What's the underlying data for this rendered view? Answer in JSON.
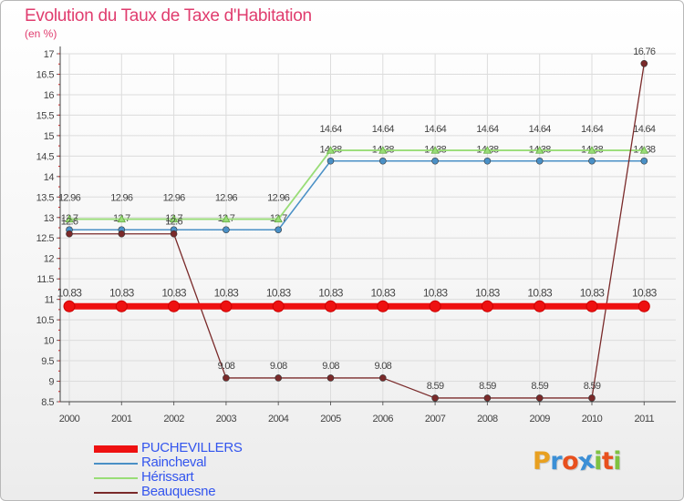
{
  "title": "Evolution du Taux de Taxe d'Habitation",
  "unit": "(en %)",
  "brand": {
    "letters": [
      "P",
      "r",
      "o",
      "x",
      "i",
      "t",
      "i"
    ],
    "colors": [
      "#e8a020",
      "#3b8fd6",
      "#e8501e",
      "#3b8fd6",
      "#7fc241",
      "#e8501e",
      "#7fc241"
    ]
  },
  "chart_data": {
    "type": "line",
    "categories": [
      "2000",
      "2001",
      "2002",
      "2003",
      "2004",
      "2005",
      "2006",
      "2007",
      "2008",
      "2009",
      "2010",
      "2011"
    ],
    "ylim": [
      8.5,
      17
    ],
    "yticks": [
      "8.5",
      "9",
      "9.5",
      "10",
      "10.5",
      "11",
      "11.5",
      "12",
      "12.5",
      "13",
      "13.5",
      "14",
      "14.5",
      "15",
      "15.5",
      "16",
      "16.5",
      "17"
    ],
    "grid": true,
    "legend_position": "bottom-left",
    "series": [
      {
        "name": "PUCHEVILLERS",
        "color": "#ee1111",
        "values": [
          10.83,
          10.83,
          10.83,
          10.83,
          10.83,
          10.83,
          10.83,
          10.83,
          10.83,
          10.83,
          10.83,
          10.83
        ],
        "labels": [
          "10.83",
          "10.83",
          "10.83",
          "10.83",
          "10.83",
          "10.83",
          "10.83",
          "10.83",
          "10.83",
          "10.83",
          "10.83",
          "10.83"
        ]
      },
      {
        "name": "Raincheval",
        "color": "#4a90c6",
        "values": [
          12.7,
          12.7,
          12.7,
          12.7,
          12.7,
          14.38,
          14.38,
          14.38,
          14.38,
          14.38,
          14.38,
          14.38
        ],
        "labels": [
          "12.7",
          "12.7",
          "12.7",
          "12.7",
          "12.7",
          "14.38",
          "14.38",
          "14.38",
          "14.38",
          "14.38",
          "14.38",
          "14.38"
        ]
      },
      {
        "name": "Hérissart",
        "color": "#99dd77",
        "values": [
          12.96,
          12.96,
          12.96,
          12.96,
          12.96,
          14.64,
          14.64,
          14.64,
          14.64,
          14.64,
          14.64,
          14.64
        ],
        "labels": [
          "12.96",
          "12.96",
          "12.96",
          "12.96",
          "12.96",
          "14.64",
          "14.64",
          "14.64",
          "14.64",
          "14.64",
          "14.64",
          "14.64"
        ]
      },
      {
        "name": "Beauquesne",
        "color": "#7a2a2a",
        "values": [
          12.6,
          12.6,
          12.6,
          9.08,
          9.08,
          9.08,
          9.08,
          8.59,
          8.59,
          8.59,
          8.59,
          16.76
        ],
        "labels": [
          "12.6",
          "",
          "12.6",
          "9.08",
          "9.08",
          "9.08",
          "9.08",
          "8.59",
          "8.59",
          "8.59",
          "8.59",
          "16.76"
        ]
      }
    ]
  }
}
